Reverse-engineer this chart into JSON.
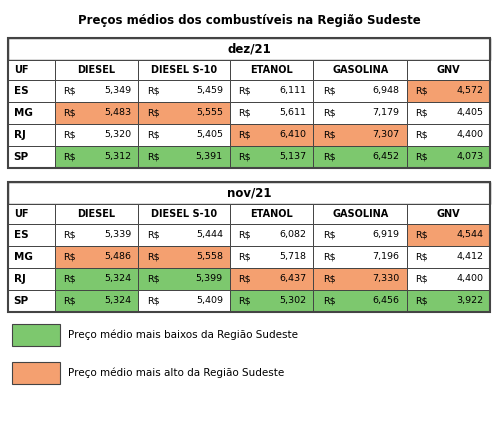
{
  "title": "Preços médios dos combustíveis na Região Sudeste",
  "tables": [
    {
      "month": "dez/21",
      "headers": [
        "UF",
        "DIESEL",
        "DIESEL S-10",
        "ETANOL",
        "GASOLINA",
        "GNV"
      ],
      "rows": [
        [
          "ES",
          "5,349",
          "5,459",
          "6,111",
          "6,948",
          "4,572"
        ],
        [
          "MG",
          "5,483",
          "5,555",
          "5,611",
          "7,179",
          "4,405"
        ],
        [
          "RJ",
          "5,320",
          "5,405",
          "6,410",
          "7,307",
          "4,400"
        ],
        [
          "SP",
          "5,312",
          "5,391",
          "5,137",
          "6,452",
          "4,073"
        ]
      ],
      "cell_colors": [
        [
          "white",
          "white",
          "white",
          "white",
          "white",
          "#f4a070"
        ],
        [
          "white",
          "#f4a070",
          "#f4a070",
          "white",
          "white",
          "white"
        ],
        [
          "white",
          "white",
          "white",
          "#f4a070",
          "#f4a070",
          "white"
        ],
        [
          "white",
          "#7dc86e",
          "#7dc86e",
          "#7dc86e",
          "#7dc86e",
          "#7dc86e"
        ]
      ]
    },
    {
      "month": "nov/21",
      "headers": [
        "UF",
        "DIESEL",
        "DIESEL S-10",
        "ETANOL",
        "GASOLINA",
        "GNV"
      ],
      "rows": [
        [
          "ES",
          "5,339",
          "5,444",
          "6,082",
          "6,919",
          "4,544"
        ],
        [
          "MG",
          "5,486",
          "5,558",
          "5,718",
          "7,196",
          "4,412"
        ],
        [
          "RJ",
          "5,324",
          "5,399",
          "6,437",
          "7,330",
          "4,400"
        ],
        [
          "SP",
          "5,324",
          "5,409",
          "5,302",
          "6,456",
          "3,922"
        ]
      ],
      "cell_colors": [
        [
          "white",
          "white",
          "white",
          "white",
          "white",
          "#f4a070"
        ],
        [
          "white",
          "#f4a070",
          "#f4a070",
          "white",
          "white",
          "white"
        ],
        [
          "white",
          "#7dc86e",
          "#7dc86e",
          "#f4a070",
          "#f4a070",
          "white"
        ],
        [
          "white",
          "#7dc86e",
          "white",
          "#7dc86e",
          "#7dc86e",
          "#7dc86e"
        ]
      ]
    }
  ],
  "legend": [
    {
      "color": "#7dc86e",
      "label": "Preço médio mais baixos da Região Sudeste"
    },
    {
      "color": "#f4a070",
      "label": "Preço médio mais alto da Região Sudeste"
    }
  ],
  "border_color": "#444444",
  "title_fontsize": 8.5,
  "header_fontsize": 7.0,
  "data_fontsize": 6.8,
  "uf_fontsize": 7.5
}
